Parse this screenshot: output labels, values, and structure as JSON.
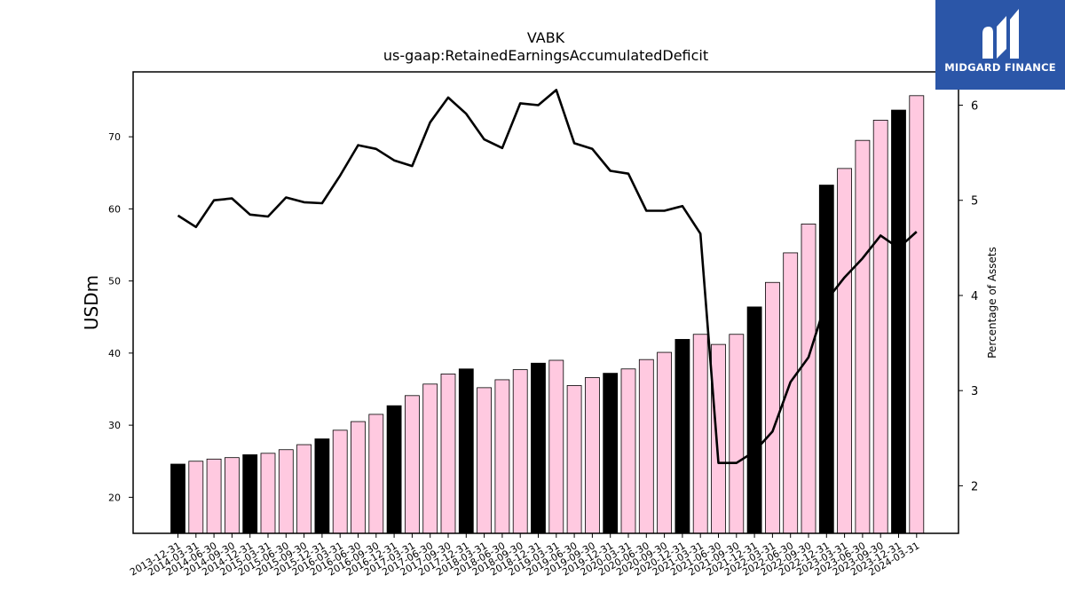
{
  "chart_data": {
    "type": "bar",
    "title": "VABK",
    "subtitle": "us-gaap:RetainedEarningsAccumulatedDeficit",
    "ylabel": "USDm",
    "y2label": "Percentage of Assets",
    "ylim": [
      15,
      79
    ],
    "y2lim": [
      1.5,
      6.35
    ],
    "yticks": [
      20,
      30,
      40,
      50,
      60,
      70
    ],
    "y2ticks": [
      2,
      3,
      4,
      5,
      6
    ],
    "categories": [
      "2013-12-31",
      "2014-03-31",
      "2014-06-30",
      "2014-09-30",
      "2014-12-31",
      "2015-03-31",
      "2015-06-30",
      "2015-09-30",
      "2015-12-31",
      "2016-03-31",
      "2016-06-30",
      "2016-09-30",
      "2016-12-31",
      "2017-03-31",
      "2017-06-30",
      "2017-09-30",
      "2017-12-31",
      "2018-03-31",
      "2018-06-30",
      "2018-09-30",
      "2018-12-31",
      "2019-03-31",
      "2019-06-30",
      "2019-09-30",
      "2019-12-31",
      "2020-03-31",
      "2020-06-30",
      "2020-09-30",
      "2020-12-31",
      "2021-03-31",
      "2021-06-30",
      "2021-09-30",
      "2021-12-31",
      "2022-03-31",
      "2022-06-30",
      "2022-09-30",
      "2022-12-31",
      "2023-03-31",
      "2023-06-30",
      "2023-09-30",
      "2023-12-31",
      "2024-03-31"
    ],
    "series": [
      {
        "type": "bar",
        "values": [
          24.6,
          25.0,
          25.3,
          25.5,
          25.9,
          26.1,
          26.6,
          27.3,
          28.1,
          29.3,
          30.5,
          31.5,
          32.7,
          34.1,
          35.7,
          37.1,
          37.8,
          35.2,
          36.3,
          37.7,
          38.6,
          39.0,
          35.5,
          36.6,
          37.2,
          37.8,
          39.1,
          40.1,
          41.9,
          42.6,
          41.2,
          42.6,
          46.4,
          49.8,
          53.9,
          57.9,
          63.3,
          65.6,
          69.5,
          72.3,
          73.7,
          75.7
        ],
        "colors": [
          "#000000",
          "#ffc9e0",
          "#ffc9e0",
          "#ffc9e0",
          "#000000",
          "#ffc9e0",
          "#ffc9e0",
          "#ffc9e0",
          "#000000",
          "#ffc9e0",
          "#ffc9e0",
          "#ffc9e0",
          "#000000",
          "#ffc9e0",
          "#ffc9e0",
          "#ffc9e0",
          "#000000",
          "#ffc9e0",
          "#ffc9e0",
          "#ffc9e0",
          "#000000",
          "#ffc9e0",
          "#ffc9e0",
          "#ffc9e0",
          "#000000",
          "#ffc9e0",
          "#ffc9e0",
          "#ffc9e0",
          "#000000",
          "#ffc9e0",
          "#ffc9e0",
          "#ffc9e0",
          "#000000",
          "#ffc9e0",
          "#ffc9e0",
          "#ffc9e0",
          "#000000",
          "#ffc9e0",
          "#ffc9e0",
          "#ffc9e0",
          "#000000",
          "#ffc9e0"
        ]
      },
      {
        "type": "line",
        "axis": "right",
        "color": "#000000",
        "values": [
          4.84,
          4.72,
          5.0,
          5.02,
          4.85,
          4.83,
          5.03,
          4.98,
          4.97,
          5.26,
          5.58,
          5.54,
          5.42,
          5.36,
          5.82,
          6.08,
          5.91,
          5.64,
          5.55,
          6.02,
          6.0,
          6.16,
          5.6,
          5.54,
          5.31,
          5.28,
          4.89,
          4.89,
          4.94,
          4.65,
          2.24,
          2.24,
          2.36,
          2.57,
          3.09,
          3.35,
          3.95,
          4.19,
          4.39,
          4.63,
          4.5,
          4.67
        ]
      }
    ],
    "grid": false
  },
  "logo": {
    "text": "MIDGARD FINANCE",
    "icon": "midgard-m-logo-icon"
  }
}
